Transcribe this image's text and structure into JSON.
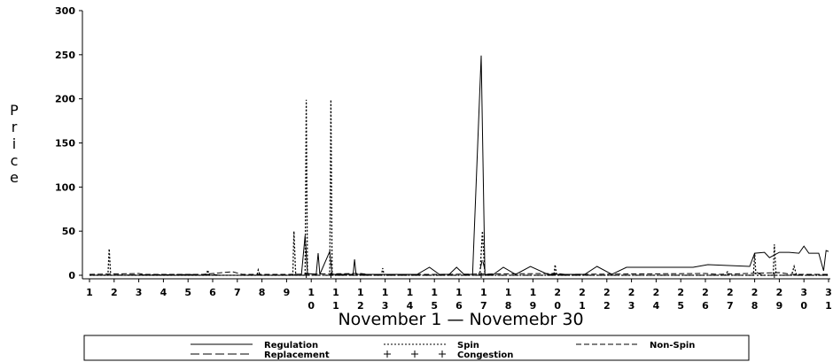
{
  "chart_data": {
    "type": "line",
    "title": "",
    "xlabel": "November 1 — Novemebr 30",
    "ylabel": "Price",
    "ylim": [
      0,
      300
    ],
    "yticks": [
      0,
      50,
      100,
      150,
      200,
      250,
      300
    ],
    "xlim": [
      1,
      31
    ],
    "xticks": [
      "1",
      "2",
      "3",
      "4",
      "5",
      "6",
      "7",
      "8",
      "9",
      "10",
      "11",
      "12",
      "13",
      "14",
      "15",
      "16",
      "17",
      "18",
      "19",
      "20",
      "21",
      "22",
      "23",
      "24",
      "25",
      "26",
      "27",
      "28",
      "29",
      "30",
      "31"
    ],
    "legend_position": "bottom",
    "series": [
      {
        "name": "Regulation",
        "style": "solid",
        "points": [
          [
            1,
            0
          ],
          [
            9.6,
            0
          ],
          [
            9.75,
            45
          ],
          [
            9.85,
            2
          ],
          [
            10.2,
            1
          ],
          [
            10.28,
            25
          ],
          [
            10.35,
            1
          ],
          [
            10.75,
            27
          ],
          [
            10.85,
            1
          ],
          [
            11.7,
            1
          ],
          [
            11.76,
            18
          ],
          [
            11.82,
            1
          ],
          [
            14.3,
            1
          ],
          [
            14.8,
            9
          ],
          [
            15.2,
            1
          ],
          [
            15.6,
            1
          ],
          [
            15.9,
            9
          ],
          [
            16.2,
            1
          ],
          [
            16.55,
            1
          ],
          [
            16.9,
            249
          ],
          [
            17.05,
            1
          ],
          [
            17.4,
            1
          ],
          [
            17.8,
            9
          ],
          [
            18.3,
            1
          ],
          [
            18.9,
            10
          ],
          [
            19.6,
            1
          ],
          [
            21.1,
            1
          ],
          [
            21.6,
            10
          ],
          [
            22.2,
            1
          ],
          [
            22.8,
            9
          ],
          [
            24,
            9
          ],
          [
            25.5,
            9
          ],
          [
            26.1,
            12
          ],
          [
            27.8,
            10
          ],
          [
            28,
            25
          ],
          [
            28.4,
            26
          ],
          [
            28.6,
            20
          ],
          [
            29,
            26
          ],
          [
            29.4,
            26
          ],
          [
            29.8,
            25
          ],
          [
            30,
            33
          ],
          [
            30.2,
            25
          ],
          [
            30.6,
            25
          ],
          [
            30.8,
            5
          ],
          [
            30.9,
            28
          ],
          [
            31,
            27
          ]
        ]
      },
      {
        "name": "Spin",
        "style": "dotted",
        "points": [
          [
            1,
            0
          ],
          [
            1.75,
            0
          ],
          [
            1.8,
            30
          ],
          [
            1.86,
            0
          ],
          [
            5.75,
            0
          ],
          [
            5.8,
            6
          ],
          [
            5.86,
            0
          ],
          [
            7.8,
            0
          ],
          [
            7.85,
            6
          ],
          [
            7.92,
            0
          ],
          [
            9.25,
            0
          ],
          [
            9.3,
            50
          ],
          [
            9.37,
            0
          ],
          [
            9.75,
            0
          ],
          [
            9.8,
            199
          ],
          [
            9.85,
            0
          ],
          [
            10.75,
            0
          ],
          [
            10.8,
            199
          ],
          [
            10.85,
            0
          ],
          [
            12.85,
            0
          ],
          [
            12.9,
            8
          ],
          [
            12.96,
            0
          ],
          [
            16.85,
            0
          ],
          [
            16.95,
            50
          ],
          [
            17.05,
            0
          ],
          [
            19.85,
            0
          ],
          [
            19.9,
            12
          ],
          [
            19.96,
            0
          ],
          [
            26.8,
            0
          ],
          [
            26.9,
            4
          ],
          [
            27,
            0
          ],
          [
            27.95,
            0
          ],
          [
            28,
            25
          ],
          [
            28.05,
            0
          ],
          [
            28.75,
            0
          ],
          [
            28.8,
            35
          ],
          [
            28.87,
            0
          ],
          [
            29.5,
            0
          ],
          [
            29.6,
            10
          ],
          [
            29.7,
            0
          ],
          [
            31,
            0
          ]
        ]
      },
      {
        "name": "Non-Spin",
        "style": "dash",
        "points": [
          [
            1,
            1
          ],
          [
            3,
            2
          ],
          [
            3.2,
            1
          ],
          [
            5.6,
            1
          ],
          [
            6.8,
            4
          ],
          [
            7.2,
            1
          ],
          [
            9,
            1
          ],
          [
            12,
            2
          ],
          [
            12.3,
            1
          ],
          [
            15,
            1
          ],
          [
            20,
            2
          ],
          [
            20.3,
            1
          ],
          [
            26,
            2
          ],
          [
            26.5,
            1
          ],
          [
            29,
            3
          ],
          [
            29.5,
            1
          ],
          [
            31,
            1
          ]
        ]
      },
      {
        "name": "Replacement",
        "style": "longdash",
        "points": [
          [
            1,
            0
          ],
          [
            6,
            1
          ],
          [
            6.3,
            0
          ],
          [
            9.3,
            0
          ],
          [
            9.4,
            2
          ],
          [
            9.5,
            0
          ],
          [
            16.8,
            0
          ],
          [
            16.95,
            18
          ],
          [
            17.1,
            0
          ],
          [
            28,
            0
          ],
          [
            28.1,
            3
          ],
          [
            28.3,
            0
          ],
          [
            31,
            0
          ]
        ]
      },
      {
        "name": "Congestion",
        "style": "cross",
        "points": [
          [
            9.8,
            0
          ],
          [
            10.8,
            0
          ],
          [
            16.9,
            0
          ],
          [
            28.8,
            0
          ]
        ]
      }
    ]
  }
}
